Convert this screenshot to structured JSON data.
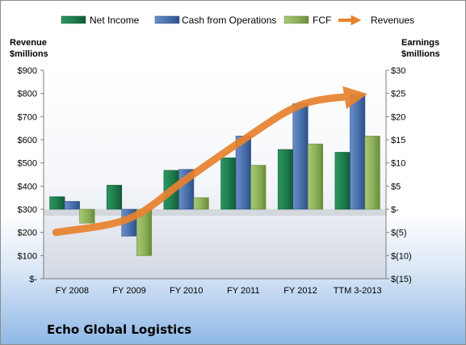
{
  "company": "Echo Global Logistics",
  "chart_data": {
    "type": "bar",
    "categories": [
      "FY 2008",
      "FY 2009",
      "FY 2010",
      "FY 2011",
      "FY 2012",
      "TTM 3-2013"
    ],
    "left_axis": {
      "label_line1": "Revenue",
      "label_line2": "$millions",
      "ylim": [
        0,
        900
      ],
      "ticks": [
        0,
        100,
        200,
        300,
        400,
        500,
        600,
        700,
        800,
        900
      ],
      "tick_labels": [
        "$-",
        "$100",
        "$200",
        "$300",
        "$400",
        "$500",
        "$600",
        "$700",
        "$800",
        "$900"
      ]
    },
    "right_axis": {
      "label_line1": "Earnings",
      "label_line2": "$millions",
      "ylim": [
        -15,
        30
      ],
      "ticks": [
        -15,
        -10,
        -5,
        0,
        5,
        10,
        15,
        20,
        25,
        30
      ],
      "tick_labels": [
        "$(15)",
        "$(10)",
        "$(5)",
        "$-",
        "$5",
        "$10",
        "$15",
        "$20",
        "$25",
        "$30"
      ]
    },
    "series": [
      {
        "name": "Net Income",
        "axis": "right",
        "kind": "bar",
        "color": "#1f7f4f",
        "values": [
          2.7,
          5.2,
          8.4,
          11.1,
          12.9,
          12.3
        ]
      },
      {
        "name": "Cash from Operations",
        "axis": "right",
        "kind": "bar",
        "color": "#4a72ad",
        "values": [
          1.7,
          -5.8,
          8.6,
          15.8,
          22.8,
          24.8
        ]
      },
      {
        "name": "FCF",
        "axis": "right",
        "kind": "bar",
        "color": "#8fb25a",
        "values": [
          -3.0,
          -10.0,
          2.5,
          9.5,
          14.1,
          15.8
        ]
      },
      {
        "name": "Revenues",
        "axis": "left",
        "kind": "arrow",
        "color": "#e8822e",
        "values": [
          200,
          260,
          430,
          600,
          750,
          790
        ]
      }
    ],
    "legend_position": "top",
    "grid": false
  }
}
